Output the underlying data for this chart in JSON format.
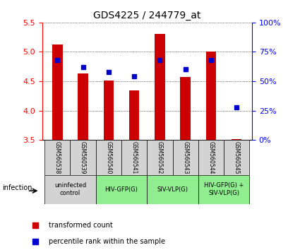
{
  "title": "GDS4225 / 244779_at",
  "samples": [
    "GSM560538",
    "GSM560539",
    "GSM560540",
    "GSM560541",
    "GSM560542",
    "GSM560543",
    "GSM560544",
    "GSM560545"
  ],
  "transformed_count": [
    5.12,
    4.63,
    4.51,
    4.34,
    5.3,
    4.57,
    5.0,
    3.52
  ],
  "percentile_rank": [
    68,
    62,
    58,
    54,
    68,
    60,
    68,
    28
  ],
  "bar_bottom": 3.5,
  "ylim_left": [
    3.5,
    5.5
  ],
  "ylim_right": [
    0,
    100
  ],
  "yticks_left": [
    3.5,
    4.0,
    4.5,
    5.0,
    5.5
  ],
  "yticks_right": [
    0,
    25,
    50,
    75,
    100
  ],
  "ytick_labels_right": [
    "0%",
    "25%",
    "50%",
    "75%",
    "100%"
  ],
  "bar_color": "#CC0000",
  "dot_color": "#0000CC",
  "groups": [
    {
      "label": "uninfected\ncontrol",
      "start": 0,
      "end": 2,
      "color": "#d3d3d3"
    },
    {
      "label": "HIV-GFP(G)",
      "start": 2,
      "end": 4,
      "color": "#90ee90"
    },
    {
      "label": "SIV-VLP(G)",
      "start": 4,
      "end": 6,
      "color": "#90ee90"
    },
    {
      "label": "HIV-GFP(G) +\nSIV-VLP(G)",
      "start": 6,
      "end": 8,
      "color": "#90ee90"
    }
  ],
  "legend_items": [
    {
      "label": "transformed count",
      "color": "#CC0000"
    },
    {
      "label": "percentile rank within the sample",
      "color": "#0000CC"
    }
  ],
  "infection_label": "infection",
  "bar_width": 0.4
}
